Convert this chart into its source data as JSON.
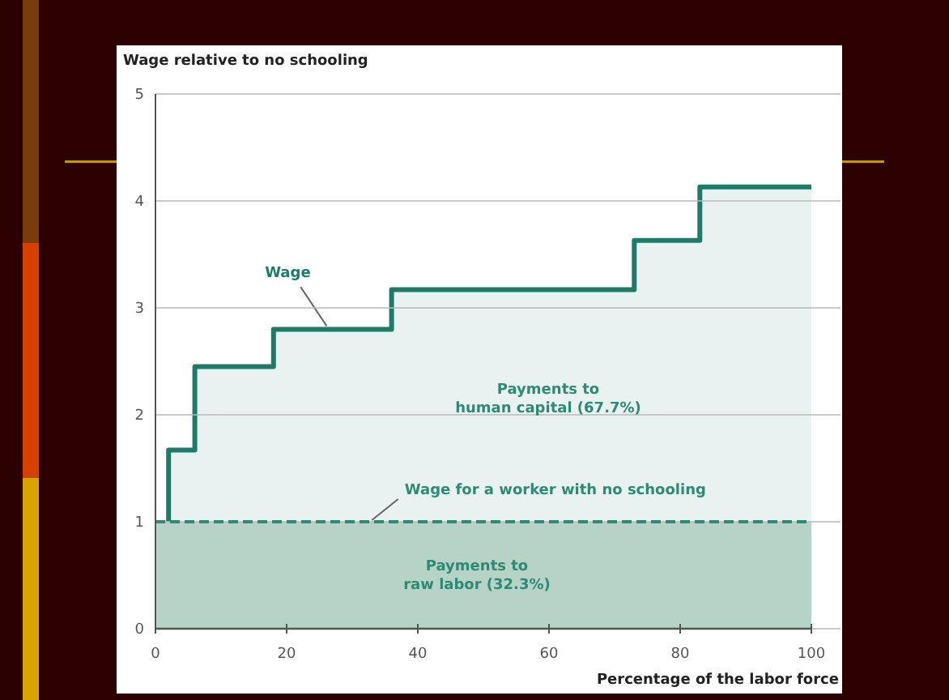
{
  "chart_data": {
    "type": "step",
    "ylabel": "Wage relative to no schooling",
    "xlabel": "Percentage of the labor force",
    "xlim": [
      0,
      100
    ],
    "xticks": [
      0,
      20,
      40,
      60,
      80,
      100
    ],
    "ylim": [
      0,
      5
    ],
    "yticks": [
      0,
      1,
      2,
      3,
      4,
      5
    ],
    "grid": "y",
    "series": [
      {
        "name": "Wage",
        "color": "#1f7a68",
        "x": [
          2,
          2,
          6,
          18,
          36,
          73,
          83,
          100
        ],
        "values": [
          1,
          1.67,
          2.45,
          2.8,
          3.17,
          3.63,
          4.13,
          4.13
        ]
      }
    ],
    "ref_lines": [
      {
        "axis": "y",
        "value": 1,
        "label": "Wage for a worker with no schooling",
        "color": "#2e8a74",
        "line_style": "dashed"
      }
    ],
    "bands": [
      {
        "axis": "y",
        "from": 0,
        "to": 1,
        "label": "Payments to\nraw labor (32.3%)",
        "color": "#b5d3c6"
      }
    ],
    "annotations": [
      "Payments to\nhuman capital (67.7%)"
    ]
  }
}
